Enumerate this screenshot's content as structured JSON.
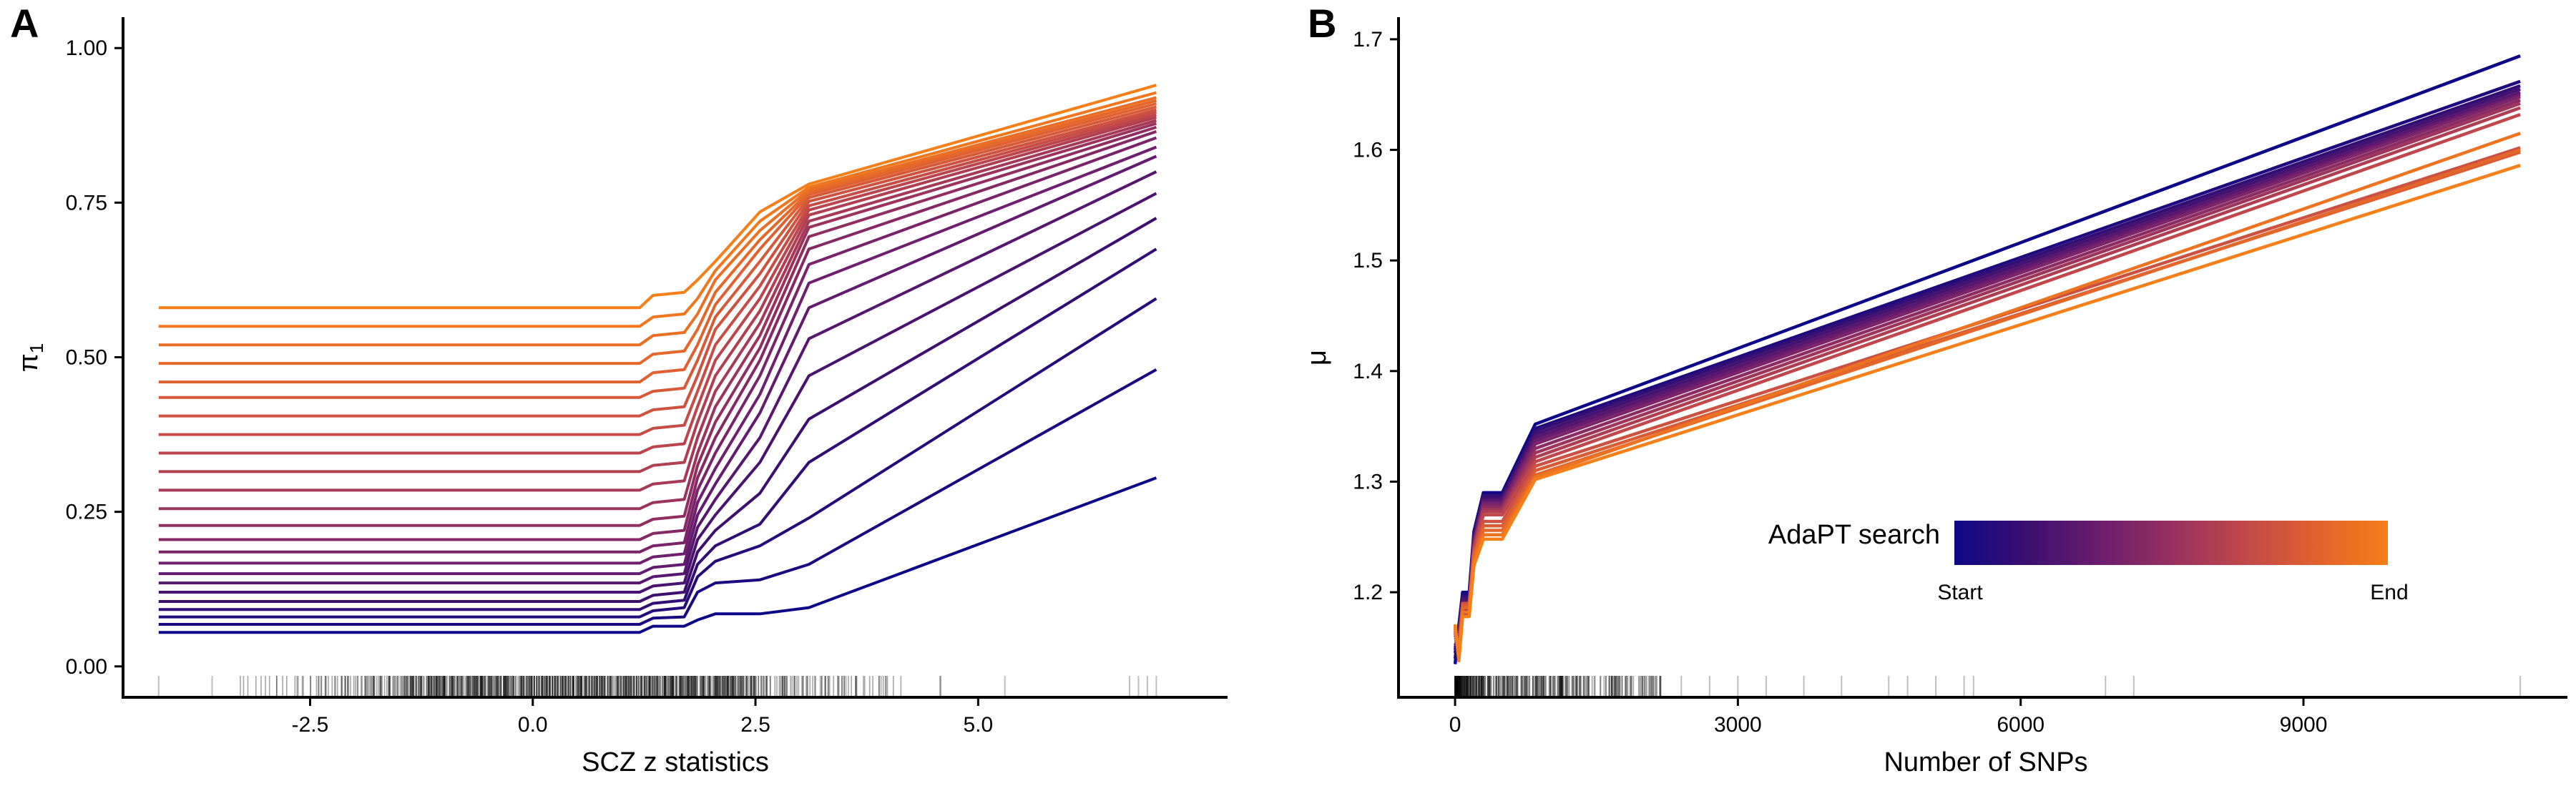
{
  "panels": {
    "A": {
      "letter": "A"
    },
    "B": {
      "letter": "B"
    }
  },
  "chart_data": [
    {
      "type": "line",
      "panel": "A",
      "xlabel": "SCZ z statistics",
      "ylabel": "π",
      "ylabel_subscript": "1",
      "xlim": [
        -4.6,
        7.8
      ],
      "ylim": [
        -0.05,
        1.05
      ],
      "xticks": [
        -2.5,
        0.0,
        2.5,
        5.0
      ],
      "xtick_labels": [
        "-2.5",
        "0.0",
        "2.5",
        "5.0"
      ],
      "yticks": [
        0.0,
        0.25,
        0.5,
        0.75,
        1.0
      ],
      "ytick_labels": [
        "0.00",
        "0.25",
        "0.50",
        "0.75",
        "1.00"
      ],
      "grid": false,
      "series_order": "AdaPT search start (dark blue) to end (orange)",
      "series": [
        {
          "x": [
            -4.2,
            1.2,
            1.35,
            1.7,
            1.85,
            2.05,
            2.55,
            3.1,
            7.0
          ],
          "y": [
            0.055,
            0.055,
            0.065,
            0.065,
            0.075,
            0.085,
            0.085,
            0.095,
            0.305
          ]
        },
        {
          "x": [
            -4.2,
            1.2,
            1.35,
            1.7,
            1.85,
            2.05,
            2.55,
            3.1,
            7.0
          ],
          "y": [
            0.068,
            0.068,
            0.078,
            0.08,
            0.12,
            0.135,
            0.14,
            0.165,
            0.48
          ]
        },
        {
          "x": [
            -4.2,
            1.2,
            1.35,
            1.7,
            1.85,
            2.05,
            2.55,
            3.1,
            7.0
          ],
          "y": [
            0.08,
            0.08,
            0.09,
            0.095,
            0.145,
            0.17,
            0.195,
            0.24,
            0.595
          ]
        },
        {
          "x": [
            -4.2,
            1.2,
            1.35,
            1.7,
            1.85,
            2.05,
            2.55,
            3.1,
            7.0
          ],
          "y": [
            0.092,
            0.092,
            0.102,
            0.107,
            0.165,
            0.195,
            0.23,
            0.33,
            0.675
          ]
        },
        {
          "x": [
            -4.2,
            1.2,
            1.35,
            1.7,
            1.85,
            2.05,
            2.55,
            3.1,
            7.0
          ],
          "y": [
            0.105,
            0.105,
            0.115,
            0.12,
            0.185,
            0.22,
            0.28,
            0.4,
            0.725
          ]
        },
        {
          "x": [
            -4.2,
            1.2,
            1.35,
            1.7,
            1.85,
            2.05,
            2.55,
            3.1,
            7.0
          ],
          "y": [
            0.12,
            0.12,
            0.13,
            0.135,
            0.205,
            0.245,
            0.33,
            0.47,
            0.765
          ]
        },
        {
          "x": [
            -4.2,
            1.2,
            1.35,
            1.7,
            1.85,
            2.05,
            2.55,
            3.1,
            7.0
          ],
          "y": [
            0.135,
            0.135,
            0.145,
            0.15,
            0.225,
            0.27,
            0.37,
            0.53,
            0.8
          ]
        },
        {
          "x": [
            -4.2,
            1.2,
            1.35,
            1.7,
            1.85,
            2.05,
            2.55,
            3.1,
            7.0
          ],
          "y": [
            0.15,
            0.15,
            0.16,
            0.165,
            0.245,
            0.295,
            0.41,
            0.58,
            0.825
          ]
        },
        {
          "x": [
            -4.2,
            1.2,
            1.35,
            1.7,
            1.85,
            2.05,
            2.55,
            3.1,
            7.0
          ],
          "y": [
            0.167,
            0.167,
            0.177,
            0.182,
            0.265,
            0.32,
            0.44,
            0.62,
            0.84
          ]
        },
        {
          "x": [
            -4.2,
            1.2,
            1.35,
            1.7,
            1.85,
            2.05,
            2.55,
            3.1,
            7.0
          ],
          "y": [
            0.185,
            0.185,
            0.195,
            0.2,
            0.285,
            0.345,
            0.47,
            0.65,
            0.855
          ]
        },
        {
          "x": [
            -4.2,
            1.2,
            1.35,
            1.7,
            1.85,
            2.05,
            2.55,
            3.1,
            7.0
          ],
          "y": [
            0.205,
            0.205,
            0.215,
            0.22,
            0.305,
            0.37,
            0.495,
            0.675,
            0.865
          ]
        },
        {
          "x": [
            -4.2,
            1.2,
            1.35,
            1.7,
            1.85,
            2.05,
            2.55,
            3.1,
            7.0
          ],
          "y": [
            0.228,
            0.228,
            0.238,
            0.243,
            0.325,
            0.395,
            0.515,
            0.695,
            0.872
          ]
        },
        {
          "x": [
            -4.2,
            1.2,
            1.35,
            1.7,
            1.85,
            2.05,
            2.55,
            3.1,
            7.0
          ],
          "y": [
            0.255,
            0.255,
            0.265,
            0.27,
            0.345,
            0.42,
            0.535,
            0.71,
            0.878
          ]
        },
        {
          "x": [
            -4.2,
            1.2,
            1.35,
            1.7,
            1.85,
            2.05,
            2.55,
            3.1,
            7.0
          ],
          "y": [
            0.285,
            0.285,
            0.295,
            0.3,
            0.37,
            0.445,
            0.555,
            0.72,
            0.883
          ]
        },
        {
          "x": [
            -4.2,
            1.2,
            1.35,
            1.7,
            1.85,
            2.05,
            2.55,
            3.1,
            7.0
          ],
          "y": [
            0.315,
            0.315,
            0.325,
            0.33,
            0.395,
            0.47,
            0.575,
            0.73,
            0.888
          ]
        },
        {
          "x": [
            -4.2,
            1.2,
            1.35,
            1.7,
            1.85,
            2.05,
            2.55,
            3.1,
            7.0
          ],
          "y": [
            0.345,
            0.345,
            0.355,
            0.36,
            0.42,
            0.495,
            0.595,
            0.738,
            0.892
          ]
        },
        {
          "x": [
            -4.2,
            1.2,
            1.35,
            1.7,
            1.85,
            2.05,
            2.55,
            3.1,
            7.0
          ],
          "y": [
            0.375,
            0.375,
            0.385,
            0.39,
            0.445,
            0.52,
            0.615,
            0.745,
            0.896
          ]
        },
        {
          "x": [
            -4.2,
            1.2,
            1.35,
            1.7,
            1.85,
            2.05,
            2.55,
            3.1,
            7.0
          ],
          "y": [
            0.405,
            0.405,
            0.415,
            0.42,
            0.47,
            0.545,
            0.635,
            0.752,
            0.9
          ]
        },
        {
          "x": [
            -4.2,
            1.2,
            1.35,
            1.7,
            1.85,
            2.05,
            2.55,
            3.1,
            7.0
          ],
          "y": [
            0.435,
            0.435,
            0.445,
            0.45,
            0.495,
            0.565,
            0.655,
            0.758,
            0.905
          ]
        },
        {
          "x": [
            -4.2,
            1.2,
            1.35,
            1.7,
            1.85,
            2.05,
            2.55,
            3.1,
            7.0
          ],
          "y": [
            0.46,
            0.46,
            0.475,
            0.48,
            0.52,
            0.585,
            0.675,
            0.763,
            0.91
          ]
        },
        {
          "x": [
            -4.2,
            1.2,
            1.35,
            1.7,
            1.85,
            2.05,
            2.55,
            3.1,
            7.0
          ],
          "y": [
            0.49,
            0.49,
            0.505,
            0.51,
            0.545,
            0.605,
            0.69,
            0.767,
            0.915
          ]
        },
        {
          "x": [
            -4.2,
            1.2,
            1.35,
            1.7,
            1.85,
            2.05,
            2.55,
            3.1,
            7.0
          ],
          "y": [
            0.52,
            0.52,
            0.535,
            0.54,
            0.57,
            0.625,
            0.705,
            0.771,
            0.92
          ]
        },
        {
          "x": [
            -4.2,
            1.2,
            1.35,
            1.7,
            1.85,
            2.05,
            2.55,
            3.1,
            7.0
          ],
          "y": [
            0.55,
            0.55,
            0.565,
            0.57,
            0.595,
            0.64,
            0.72,
            0.775,
            0.928
          ]
        },
        {
          "x": [
            -4.2,
            1.2,
            1.35,
            1.7,
            1.85,
            2.05,
            2.55,
            3.1,
            7.0
          ],
          "y": [
            0.58,
            0.58,
            0.6,
            0.605,
            0.625,
            0.655,
            0.735,
            0.78,
            0.94
          ]
        }
      ],
      "rug": {
        "dense_range": [
          -3.3,
          4.9
        ],
        "sparse_x": [
          -4.2,
          -3.6,
          5.3,
          6.7,
          6.8,
          6.9,
          7.0
        ]
      }
    },
    {
      "type": "line",
      "panel": "B",
      "xlabel": "Number of SNPs",
      "ylabel": "μ",
      "xlim": [
        -600,
        11800
      ],
      "ylim": [
        1.105,
        1.72
      ],
      "xticks": [
        0,
        3000,
        6000,
        9000
      ],
      "xtick_labels": [
        "0",
        "3000",
        "6000",
        "9000"
      ],
      "yticks": [
        1.2,
        1.3,
        1.4,
        1.5,
        1.6,
        1.7
      ],
      "ytick_labels": [
        "1.2",
        "1.3",
        "1.4",
        "1.5",
        "1.6",
        "1.7"
      ],
      "grid": false,
      "series_order": "AdaPT search start (dark blue) to end (orange)",
      "series": [
        {
          "x": [
            0,
            40,
            80,
            150,
            200,
            300,
            500,
            850,
            11300
          ],
          "y": [
            1.135,
            1.17,
            1.2,
            1.2,
            1.255,
            1.29,
            1.29,
            1.352,
            1.685
          ]
        },
        {
          "x": [
            0,
            40,
            80,
            150,
            200,
            300,
            500,
            850,
            11300
          ],
          "y": [
            1.14,
            1.168,
            1.198,
            1.198,
            1.253,
            1.288,
            1.288,
            1.348,
            1.662
          ]
        },
        {
          "x": [
            0,
            40,
            80,
            150,
            200,
            300,
            500,
            850,
            11300
          ],
          "y": [
            1.145,
            1.166,
            1.196,
            1.196,
            1.252,
            1.287,
            1.287,
            1.346,
            1.658
          ]
        },
        {
          "x": [
            0,
            40,
            80,
            150,
            200,
            300,
            500,
            850,
            11300
          ],
          "y": [
            1.148,
            1.164,
            1.194,
            1.194,
            1.25,
            1.285,
            1.285,
            1.343,
            1.655
          ]
        },
        {
          "x": [
            0,
            40,
            80,
            150,
            200,
            300,
            500,
            850,
            11300
          ],
          "y": [
            1.15,
            1.162,
            1.192,
            1.192,
            1.248,
            1.283,
            1.283,
            1.34,
            1.652
          ]
        },
        {
          "x": [
            0,
            40,
            80,
            150,
            200,
            300,
            500,
            850,
            11300
          ],
          "y": [
            1.152,
            1.16,
            1.19,
            1.19,
            1.246,
            1.281,
            1.281,
            1.337,
            1.65
          ]
        },
        {
          "x": [
            0,
            40,
            80,
            150,
            200,
            300,
            500,
            850,
            11300
          ],
          "y": [
            1.155,
            1.158,
            1.188,
            1.188,
            1.245,
            1.279,
            1.279,
            1.334,
            1.648
          ]
        },
        {
          "x": [
            0,
            40,
            80,
            150,
            200,
            300,
            500,
            850,
            11300
          ],
          "y": [
            1.157,
            1.156,
            1.186,
            1.186,
            1.243,
            1.277,
            1.277,
            1.33,
            1.645
          ]
        },
        {
          "x": [
            0,
            40,
            80,
            150,
            200,
            300,
            500,
            850,
            11300
          ],
          "y": [
            1.159,
            1.154,
            1.184,
            1.184,
            1.242,
            1.275,
            1.275,
            1.326,
            1.642
          ]
        },
        {
          "x": [
            0,
            40,
            80,
            150,
            200,
            300,
            500,
            850,
            11300
          ],
          "y": [
            1.161,
            1.152,
            1.182,
            1.182,
            1.24,
            1.273,
            1.273,
            1.322,
            1.638
          ]
        },
        {
          "x": [
            0,
            40,
            80,
            150,
            200,
            300,
            500,
            850,
            11300
          ],
          "y": [
            1.163,
            1.15,
            1.18,
            1.18,
            1.238,
            1.27,
            1.27,
            1.318,
            1.632
          ]
        },
        {
          "x": [
            0,
            40,
            80,
            150,
            200,
            300,
            500,
            850,
            11300
          ],
          "y": [
            1.165,
            1.148,
            1.19,
            1.19,
            1.236,
            1.264,
            1.264,
            1.314,
            1.602
          ]
        },
        {
          "x": [
            0,
            40,
            80,
            150,
            200,
            300,
            500,
            850,
            11300
          ],
          "y": [
            1.167,
            1.146,
            1.188,
            1.188,
            1.234,
            1.26,
            1.26,
            1.31,
            1.598
          ]
        },
        {
          "x": [
            0,
            40,
            80,
            150,
            200,
            300,
            500,
            850,
            11300
          ],
          "y": [
            1.169,
            1.144,
            1.186,
            1.186,
            1.232,
            1.256,
            1.256,
            1.306,
            1.6
          ]
        },
        {
          "x": [
            0,
            40,
            80,
            150,
            200,
            300,
            500,
            850,
            11300
          ],
          "y": [
            1.17,
            1.14,
            1.182,
            1.182,
            1.228,
            1.252,
            1.252,
            1.304,
            1.615
          ]
        },
        {
          "x": [
            0,
            40,
            80,
            150,
            200,
            300,
            500,
            850,
            11300
          ],
          "y": [
            1.171,
            1.138,
            1.178,
            1.178,
            1.224,
            1.248,
            1.248,
            1.302,
            1.586
          ]
        }
      ],
      "rug": {
        "dense_range": [
          0,
          2200
        ],
        "sparse_x": [
          2400,
          2700,
          3000,
          3300,
          3700,
          4100,
          4600,
          4800,
          5100,
          5400,
          5500,
          6900,
          7200,
          11300
        ]
      },
      "colorbar": {
        "title": "AdaPT search",
        "start_label": "Start",
        "end_label": "End",
        "colors": [
          "#0d0887",
          "#3b0f70",
          "#6a1d6e",
          "#96305f",
          "#c0474b",
          "#e0612f",
          "#f57f18"
        ]
      }
    }
  ]
}
